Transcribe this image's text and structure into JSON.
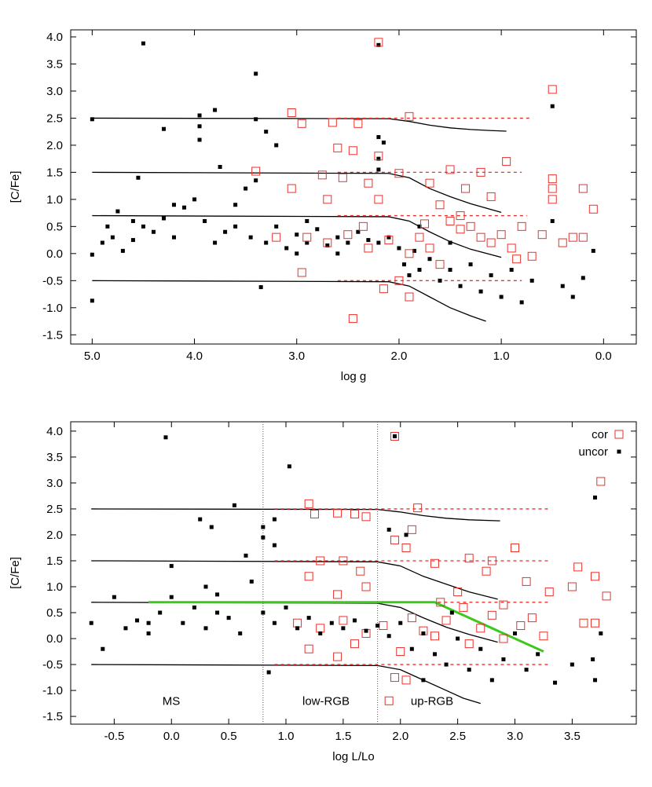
{
  "chart_data": [
    {
      "type": "scatter",
      "x_label": "log g",
      "y_label": "[C/Fe]",
      "xlim": [
        5.21,
        -0.32
      ],
      "ylim": [
        -1.67,
        4.13
      ],
      "xticks": [
        {
          "value": 5,
          "label": "5.0"
        },
        {
          "value": 4,
          "label": "4.0"
        },
        {
          "value": 3,
          "label": "3.0"
        },
        {
          "value": 2,
          "label": "2.0"
        },
        {
          "value": 1,
          "label": "1.0"
        },
        {
          "value": 0,
          "label": "0.0"
        }
      ],
      "yticks": [
        -1.5,
        {
          "value": -1,
          "label": "-1.0"
        },
        -0.5,
        {
          "value": 0,
          "label": "0.0"
        },
        0.5,
        {
          "value": 1,
          "label": "1.0"
        },
        1.5,
        {
          "value": 2,
          "label": "2.0"
        },
        2.5,
        {
          "value": 3,
          "label": "3.0"
        },
        3.5,
        {
          "value": 4,
          "label": "4.0"
        }
      ],
      "series": [
        {
          "name": "uncor",
          "color": "#000000",
          "marker": "filled",
          "x": [
            5.0,
            4.5,
            3.95,
            3.95,
            3.95,
            4.3,
            3.4,
            3.8,
            3.4,
            3.2,
            3.3,
            2.2,
            2.2,
            2.15,
            2.2,
            2.2,
            5.0,
            5.0,
            4.9,
            4.85,
            4.75,
            4.8,
            4.7,
            4.6,
            4.55,
            4.5,
            4.4,
            4.3,
            4.2,
            4.1,
            4.0,
            3.9,
            3.8,
            3.75,
            3.7,
            3.6,
            3.5,
            3.45,
            3.4,
            3.35,
            3.3,
            3.2,
            3.1,
            3.0,
            2.9,
            2.8,
            2.7,
            2.6,
            2.5,
            2.4,
            2.3,
            2.2,
            2.1,
            2.0,
            1.95,
            1.9,
            1.85,
            1.8,
            1.7,
            1.6,
            1.5,
            1.4,
            1.3,
            1.2,
            1.1,
            1.0,
            0.9,
            0.8,
            0.7,
            0.5,
            0.5,
            0.4,
            0.3,
            0.2,
            0.1,
            1.5,
            1.8,
            2.6,
            2.9,
            4.6,
            4.2,
            3.6,
            3.0
          ],
          "values": [
            2.48,
            3.88,
            2.55,
            2.35,
            2.1,
            2.3,
            3.32,
            2.65,
            2.48,
            2.0,
            2.25,
            3.85,
            2.15,
            2.05,
            1.75,
            1.55,
            -0.02,
            -0.87,
            0.2,
            0.5,
            0.78,
            0.3,
            0.05,
            0.25,
            1.4,
            0.5,
            0.4,
            0.65,
            0.3,
            0.85,
            1.0,
            0.6,
            0.2,
            1.6,
            0.4,
            0.9,
            1.2,
            0.3,
            1.35,
            -0.62,
            0.2,
            0.5,
            0.1,
            0.35,
            0.2,
            0.45,
            0.15,
            0.3,
            0.2,
            0.4,
            0.25,
            0.2,
            0.3,
            0.1,
            -0.2,
            -0.4,
            0.05,
            -0.3,
            -0.1,
            -0.5,
            -0.3,
            -0.6,
            -0.2,
            -0.7,
            -0.4,
            -0.8,
            -0.3,
            -0.9,
            -0.5,
            2.72,
            0.6,
            -0.6,
            -0.8,
            -0.45,
            0.05,
            0.2,
            0.5,
            0.0,
            0.6,
            0.6,
            0.9,
            0.5,
            0.0
          ]
        },
        {
          "name": "cor",
          "color": "#e8322c",
          "marker": "open",
          "x": [
            2.2,
            0.5,
            3.05,
            2.95,
            2.65,
            2.4,
            1.9,
            2.6,
            2.45,
            2.2,
            2.0,
            3.4,
            2.75,
            2.55,
            3.05,
            2.3,
            1.5,
            1.2,
            0.95,
            0.5,
            0.5,
            0.5,
            0.2,
            0.1,
            1.7,
            1.35,
            1.1,
            0.8,
            0.6,
            0.4,
            0.3,
            0.2,
            2.7,
            2.2,
            2.45,
            2.95,
            2.15,
            1.9,
            2.9,
            2.7,
            2.5,
            2.3,
            2.1,
            1.9,
            1.8,
            1.7,
            1.6,
            1.5,
            1.4,
            1.3,
            1.2,
            1.1,
            1.0,
            0.9,
            0.85,
            0.7,
            1.6,
            1.4,
            3.2,
            2.35,
            2.0,
            1.75
          ],
          "values": [
            3.9,
            3.03,
            2.6,
            2.4,
            2.42,
            2.4,
            2.53,
            1.95,
            1.9,
            1.8,
            1.48,
            1.52,
            1.45,
            1.4,
            1.2,
            1.3,
            1.55,
            1.5,
            1.7,
            1.38,
            1.2,
            1.0,
            1.2,
            0.82,
            1.3,
            1.2,
            1.05,
            0.5,
            0.35,
            0.2,
            0.3,
            0.3,
            1.0,
            1.0,
            -1.2,
            -0.35,
            -0.65,
            -0.8,
            0.3,
            0.2,
            0.35,
            0.1,
            0.25,
            0.0,
            0.3,
            0.1,
            -0.2,
            0.6,
            0.45,
            0.5,
            0.3,
            0.2,
            0.35,
            0.1,
            -0.1,
            -0.05,
            0.9,
            0.7,
            0.3,
            0.5,
            -0.5,
            0.55
          ]
        }
      ],
      "lines": [
        {
          "color": "#000000",
          "dash": false,
          "x": [
            5.0,
            2.1,
            1.9,
            1.7,
            1.5,
            1.3,
            1.1,
            0.95
          ],
          "values": [
            2.5,
            2.49,
            2.44,
            2.37,
            2.32,
            2.29,
            2.27,
            2.26
          ]
        },
        {
          "color": "#000000",
          "dash": false,
          "x": [
            5.0,
            2.1,
            1.9,
            1.7,
            1.5,
            1.3,
            1.0
          ],
          "values": [
            1.5,
            1.48,
            1.4,
            1.2,
            1.05,
            0.92,
            0.76
          ]
        },
        {
          "color": "#000000",
          "dash": false,
          "x": [
            5.0,
            2.1,
            1.9,
            1.7,
            1.5,
            1.3,
            1.0
          ],
          "values": [
            0.7,
            0.68,
            0.6,
            0.4,
            0.22,
            0.08,
            -0.07
          ]
        },
        {
          "color": "#000000",
          "dash": false,
          "x": [
            5.0,
            2.1,
            1.9,
            1.7,
            1.5,
            1.3,
            1.15
          ],
          "values": [
            -0.5,
            -0.52,
            -0.6,
            -0.8,
            -1.0,
            -1.15,
            -1.25
          ]
        },
        {
          "color": "#e8322c",
          "dash": true,
          "x": [
            2.6,
            0.7
          ],
          "values": [
            2.5,
            2.5
          ]
        },
        {
          "color": "#e8322c",
          "dash": true,
          "x": [
            2.6,
            0.8
          ],
          "values": [
            1.5,
            1.5
          ]
        },
        {
          "color": "#e8322c",
          "dash": true,
          "x": [
            2.6,
            0.75
          ],
          "values": [
            0.7,
            0.7
          ]
        },
        {
          "color": "#e8322c",
          "dash": true,
          "x": [
            2.6,
            0.8
          ],
          "values": [
            -0.5,
            -0.5
          ]
        }
      ]
    },
    {
      "type": "scatter",
      "x_label": "log L/Lo",
      "y_label": "[C/Fe]",
      "xlim": [
        -0.88,
        4.06
      ],
      "ylim": [
        -1.65,
        4.18
      ],
      "xticks": [
        -0.5,
        {
          "value": 0,
          "label": "0.0"
        },
        0.5,
        {
          "value": 1,
          "label": "1.0"
        },
        1.5,
        {
          "value": 2,
          "label": "2.0"
        },
        2.5,
        {
          "value": 3,
          "label": "3.0"
        },
        3.5
      ],
      "yticks": [
        -1.5,
        {
          "value": -1,
          "label": "-1.0"
        },
        -0.5,
        {
          "value": 0,
          "label": "0.0"
        },
        0.5,
        {
          "value": 1,
          "label": "1.0"
        },
        1.5,
        {
          "value": 2,
          "label": "2.0"
        },
        2.5,
        {
          "value": 3,
          "label": "3.0"
        },
        3.5,
        {
          "value": 4,
          "label": "4.0"
        }
      ],
      "legend": "upper right",
      "vlines": [
        0.8,
        1.8
      ],
      "annotations": [
        "MS",
        "low-RGB",
        "up-RGB"
      ],
      "series": [
        {
          "name": "cor",
          "color": "#e8322c",
          "marker": "open",
          "x": [
            1.95,
            3.75,
            1.2,
            1.25,
            1.45,
            1.6,
            1.7,
            2.15,
            2.1,
            1.95,
            2.05,
            1.3,
            1.5,
            1.65,
            1.2,
            2.3,
            2.6,
            2.8,
            3.0,
            3.55,
            3.7,
            3.8,
            3.6,
            3.7,
            3.5,
            2.75,
            3.1,
            2.5,
            1.45,
            1.7,
            1.2,
            1.45,
            1.6,
            2.0,
            1.95,
            2.05,
            1.9,
            1.1,
            1.3,
            1.5,
            1.7,
            1.85,
            2.1,
            2.2,
            2.3,
            2.4,
            2.55,
            2.7,
            2.8,
            2.9,
            3.05,
            3.15,
            3.25,
            2.6,
            2.35,
            2.9,
            3.3
          ],
          "values": [
            3.9,
            3.03,
            2.6,
            2.4,
            2.42,
            2.4,
            2.35,
            2.52,
            2.1,
            1.9,
            1.75,
            1.5,
            1.5,
            1.3,
            1.2,
            1.45,
            1.55,
            1.5,
            1.75,
            1.38,
            1.2,
            0.82,
            0.3,
            0.3,
            1.0,
            1.3,
            1.1,
            0.9,
            0.85,
            1.0,
            -0.2,
            -0.35,
            -0.1,
            -0.25,
            -0.75,
            -0.8,
            -1.2,
            0.3,
            0.2,
            0.35,
            0.1,
            0.25,
            0.4,
            0.15,
            0.05,
            0.35,
            0.6,
            0.2,
            0.45,
            0.0,
            0.25,
            0.4,
            0.05,
            -0.1,
            0.7,
            0.65,
            0.9
          ]
        },
        {
          "name": "uncor",
          "color": "#000000",
          "marker": "filled",
          "x": [
            -0.05,
            1.03,
            1.95,
            3.7,
            0.55,
            0.25,
            0.35,
            0.8,
            0.9,
            0.8,
            0.9,
            0.65,
            0.0,
            0.3,
            -0.7,
            -0.6,
            -0.5,
            -0.4,
            -0.3,
            -0.2,
            -0.1,
            0.0,
            0.1,
            0.2,
            0.3,
            0.4,
            0.5,
            0.6,
            0.7,
            0.8,
            0.85,
            0.9,
            1.0,
            1.1,
            1.2,
            1.3,
            1.4,
            1.5,
            1.6,
            1.7,
            1.8,
            1.9,
            2.0,
            2.1,
            2.2,
            2.3,
            2.4,
            2.5,
            2.6,
            2.7,
            2.8,
            2.9,
            3.0,
            3.1,
            3.2,
            3.35,
            3.5,
            3.7,
            3.75,
            3.68,
            2.2,
            2.45,
            1.9,
            2.05,
            0.4,
            -0.2
          ],
          "values": [
            3.88,
            3.32,
            3.9,
            2.72,
            2.57,
            2.3,
            2.15,
            2.15,
            2.3,
            1.95,
            1.8,
            1.6,
            1.4,
            1.0,
            0.3,
            -0.2,
            0.8,
            0.2,
            0.35,
            0.1,
            0.5,
            0.8,
            0.3,
            0.6,
            0.2,
            0.85,
            0.4,
            0.1,
            1.1,
            0.5,
            -0.65,
            0.3,
            0.6,
            0.2,
            0.4,
            0.1,
            0.3,
            0.2,
            0.35,
            0.15,
            0.25,
            0.05,
            0.3,
            -0.2,
            0.1,
            -0.3,
            -0.5,
            0.0,
            -0.6,
            -0.2,
            -0.8,
            -0.4,
            0.1,
            -0.6,
            -0.3,
            -0.85,
            -0.5,
            -0.8,
            0.1,
            -0.4,
            -0.8,
            0.5,
            2.1,
            2.0,
            0.5,
            0.3
          ]
        }
      ],
      "lines": [
        {
          "color": "#000000",
          "dash": false,
          "x": [
            -0.7,
            1.8,
            2.0,
            2.2,
            2.4,
            2.6,
            2.87
          ],
          "values": [
            2.5,
            2.49,
            2.44,
            2.37,
            2.32,
            2.29,
            2.27
          ]
        },
        {
          "color": "#000000",
          "dash": false,
          "x": [
            -0.7,
            1.8,
            2.0,
            2.2,
            2.4,
            2.6,
            2.85
          ],
          "values": [
            1.5,
            1.48,
            1.4,
            1.2,
            1.05,
            0.9,
            0.76
          ]
        },
        {
          "color": "#000000",
          "dash": false,
          "x": [
            -0.7,
            1.8,
            2.0,
            2.2,
            2.4,
            2.6,
            2.85
          ],
          "values": [
            0.7,
            0.68,
            0.6,
            0.4,
            0.22,
            0.08,
            -0.07
          ]
        },
        {
          "color": "#000000",
          "dash": false,
          "x": [
            -0.7,
            1.8,
            2.0,
            2.2,
            2.4,
            2.55,
            2.7
          ],
          "values": [
            -0.5,
            -0.52,
            -0.6,
            -0.8,
            -1.0,
            -1.15,
            -1.25
          ]
        },
        {
          "color": "#e8322c",
          "dash": true,
          "x": [
            0.9,
            3.3
          ],
          "values": [
            2.5,
            2.5
          ]
        },
        {
          "color": "#e8322c",
          "dash": true,
          "x": [
            0.9,
            3.3
          ],
          "values": [
            1.5,
            1.5
          ]
        },
        {
          "color": "#e8322c",
          "dash": true,
          "x": [
            0.9,
            3.3
          ],
          "values": [
            0.7,
            0.7
          ]
        },
        {
          "color": "#e8322c",
          "dash": true,
          "x": [
            0.9,
            3.3
          ],
          "values": [
            -0.5,
            -0.5
          ]
        },
        {
          "color": "#3ec81e",
          "dash": false,
          "width": 3,
          "x": [
            -0.2,
            2.3,
            3.25
          ],
          "values": [
            0.7,
            0.7,
            -0.25
          ]
        }
      ]
    }
  ]
}
